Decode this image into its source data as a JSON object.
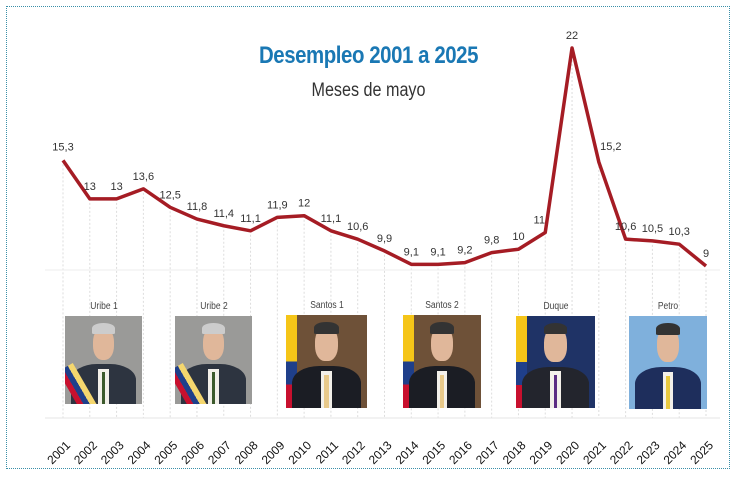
{
  "chart_data": {
    "type": "line",
    "title": "Desempleo 2001 a 2025",
    "subtitle": "Meses de mayo",
    "categories": [
      "2001",
      "2002",
      "2003",
      "2004",
      "2005",
      "2006",
      "2007",
      "2008",
      "2009",
      "2010",
      "2011",
      "2012",
      "2013",
      "2014",
      "2015",
      "2016",
      "2017",
      "2018",
      "2019",
      "2020",
      "2021",
      "2022",
      "2023",
      "2024",
      "2025"
    ],
    "values": [
      15.3,
      13,
      13,
      13.6,
      12.5,
      11.8,
      11.4,
      11.1,
      11.9,
      12,
      11.1,
      10.6,
      9.9,
      9.1,
      9.1,
      9.2,
      9.8,
      10,
      11,
      22,
      15.2,
      10.6,
      10.5,
      10.3,
      9
    ],
    "data_labels": [
      "15,3",
      "13",
      "13",
      "13,6",
      "12,5",
      "11,8",
      "11,4",
      "11,1",
      "11,9",
      "12",
      "11,1",
      "10,6",
      "9,9",
      "9,1",
      "9,1",
      "9,2",
      "9,8",
      "10",
      "11",
      "22",
      "15,2",
      "10,6",
      "10,5",
      "10,3",
      "9"
    ],
    "ylim": [
      9,
      22
    ],
    "line_color": "#a51c24",
    "grid": "vertical dotted",
    "periods": [
      {
        "label": "Uribe 1",
        "suit": "#2d3440",
        "bg": "#9a9a98",
        "tie": "#3c5a2c",
        "sash": true
      },
      {
        "label": "Uribe 2",
        "suit": "#2d3440",
        "bg": "#9a9a98",
        "tie": "#3c5a2c",
        "sash": true
      },
      {
        "label": "Santos 1",
        "suit": "#1b1d24",
        "bg": "#6e5138",
        "tie": "#e8c98a",
        "flag": true
      },
      {
        "label": "Santos 2",
        "suit": "#1b1d24",
        "bg": "#6e5138",
        "tie": "#e8c98a",
        "flag": true
      },
      {
        "label": "Duque",
        "suit": "#23252d",
        "bg": "#1f3366",
        "tie": "#5b2c83",
        "flag": true
      },
      {
        "label": "Petro",
        "suit": "#1e2e5c",
        "bg": "#7fb0dc",
        "tie": "#e8c940",
        "sash": false
      }
    ]
  }
}
